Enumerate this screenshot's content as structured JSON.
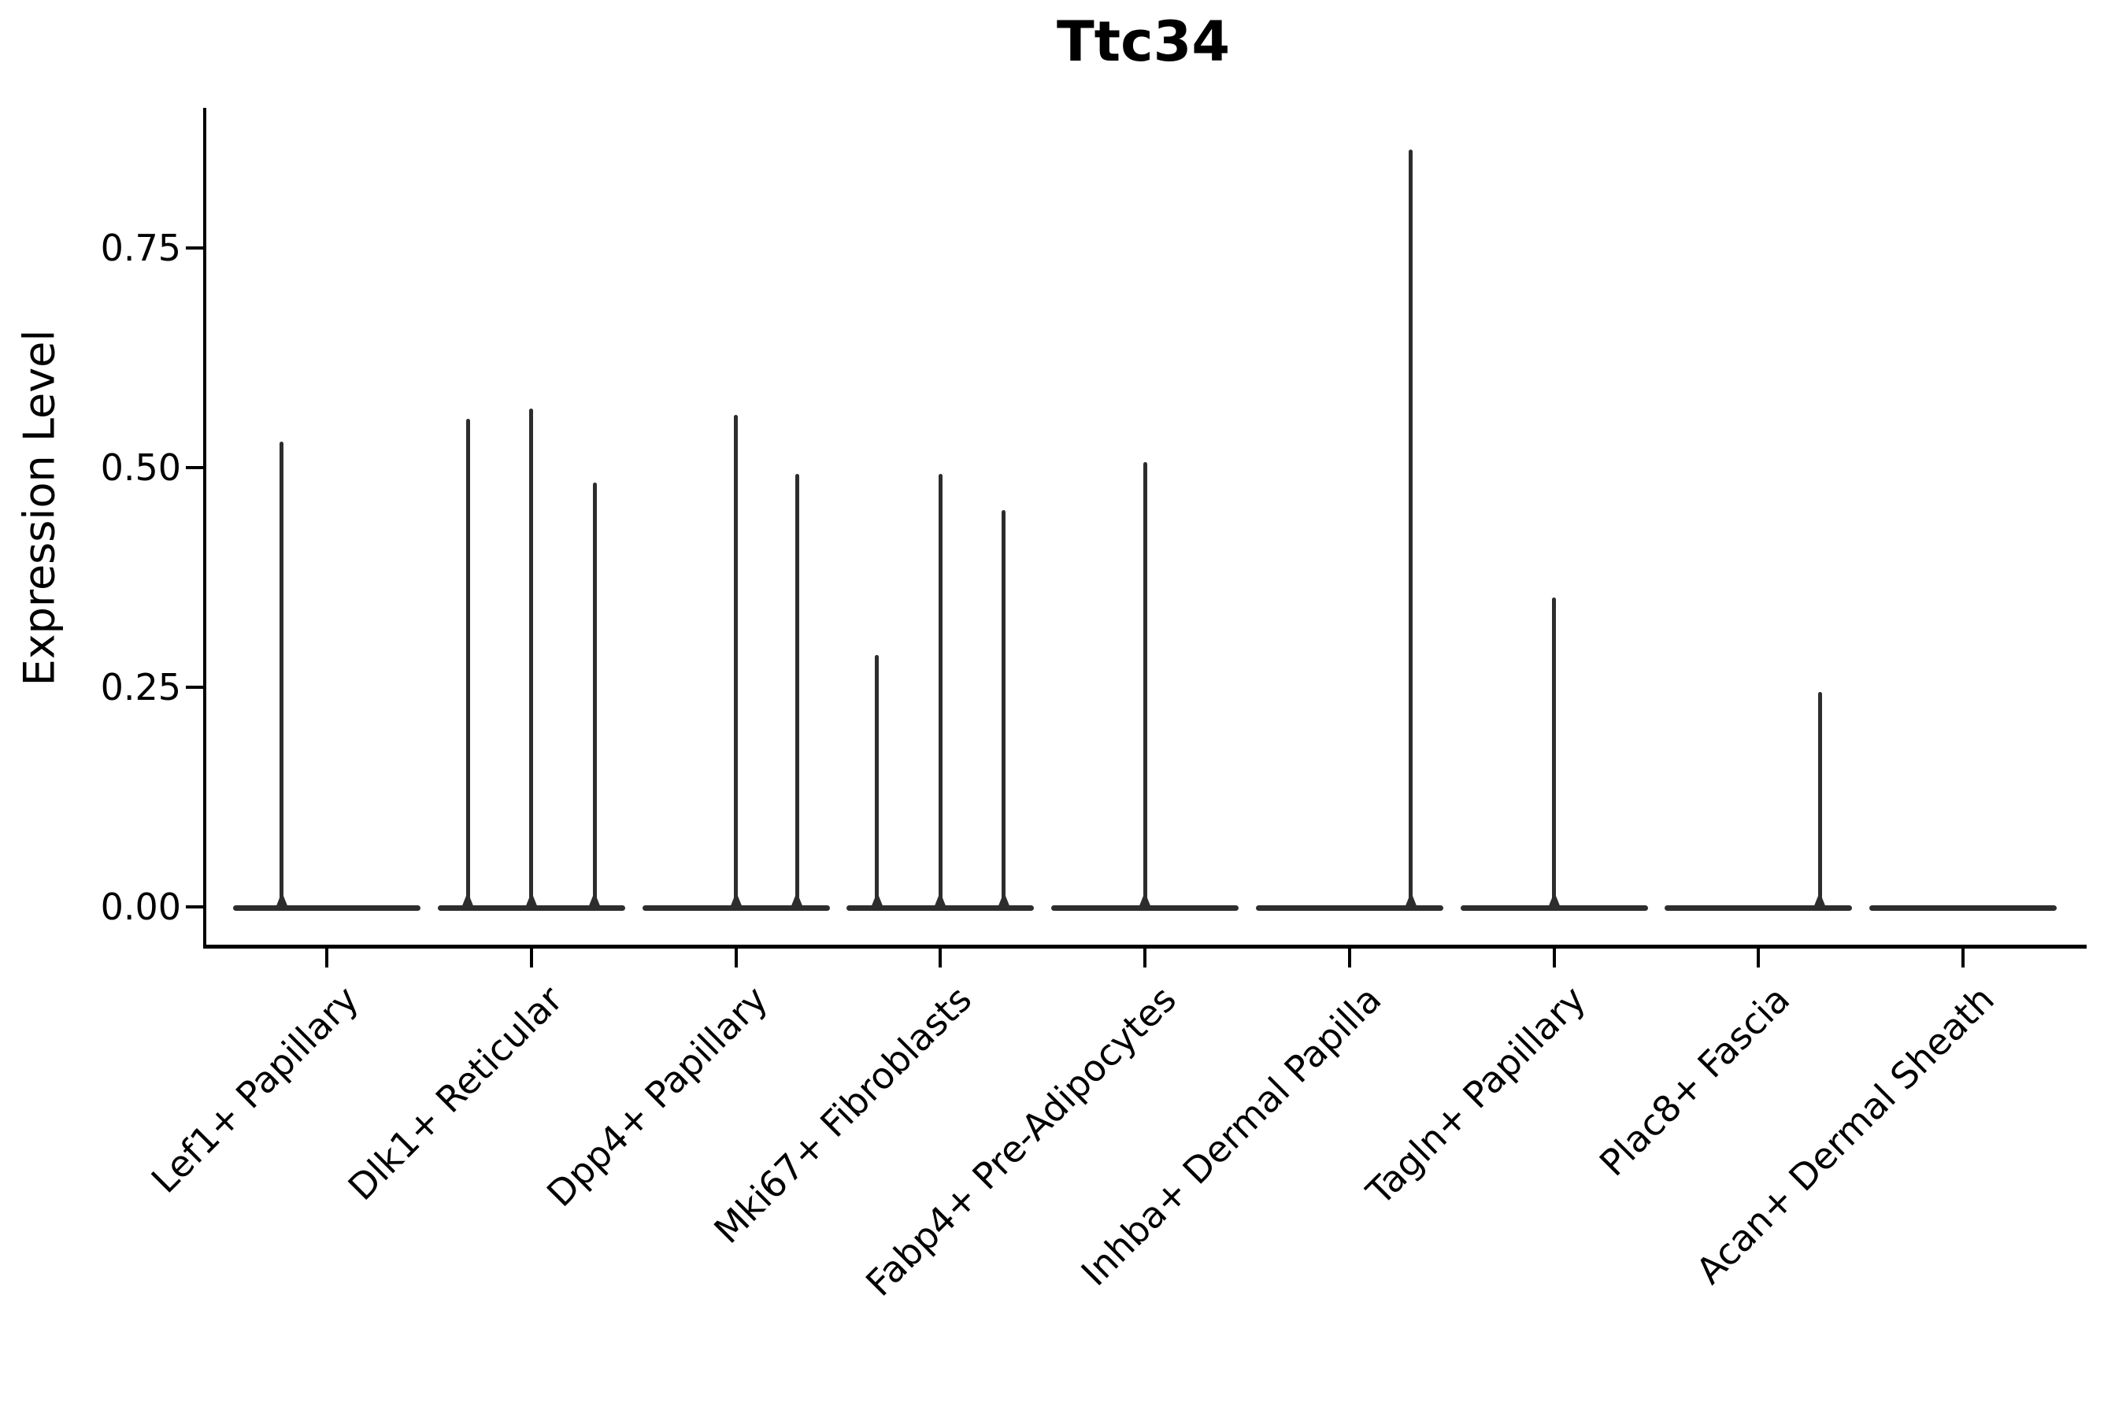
{
  "chart_data": {
    "type": "violin",
    "title": "Ttc34",
    "xlabel": "",
    "ylabel": "Expression Level",
    "ylim": [
      -0.045,
      0.91
    ],
    "grid": false,
    "legend": "none",
    "y_ticks": [
      {
        "value": 0.0,
        "label": "0.00"
      },
      {
        "value": 0.25,
        "label": "0.25"
      },
      {
        "value": 0.5,
        "label": "0.50"
      },
      {
        "value": 0.75,
        "label": "0.75"
      }
    ],
    "categories": [
      "Lef1+ Papillary",
      "Dlk1+ Reticular",
      "Dpp4+ Papillary",
      "Mki67+ Fibroblasts",
      "Fabp4+ Pre-Adipocytes",
      "Inhba+ Dermal Papilla",
      "Tagln+ Papillary",
      "Plac8+ Fascia",
      "Acan+ Dermal Sheath"
    ],
    "violins": [
      {
        "category": "Lef1+ Papillary",
        "baseline_value": 0,
        "spikes": [
          {
            "x_offset_frac": -0.22,
            "max_value": 0.53
          }
        ]
      },
      {
        "category": "Dlk1+ Reticular",
        "baseline_value": 0,
        "spikes": [
          {
            "x_offset_frac": -0.31,
            "max_value": 0.556
          },
          {
            "x_offset_frac": 0.0,
            "max_value": 0.567
          },
          {
            "x_offset_frac": 0.31,
            "max_value": 0.483
          }
        ]
      },
      {
        "category": "Dpp4+ Papillary",
        "baseline_value": 0,
        "spikes": [
          {
            "x_offset_frac": 0.0,
            "max_value": 0.56
          },
          {
            "x_offset_frac": 0.3,
            "max_value": 0.493
          }
        ]
      },
      {
        "category": "Mki67+ Fibroblasts",
        "baseline_value": 0,
        "spikes": [
          {
            "x_offset_frac": -0.31,
            "max_value": 0.287
          },
          {
            "x_offset_frac": 0.0,
            "max_value": 0.493
          },
          {
            "x_offset_frac": 0.31,
            "max_value": 0.452
          }
        ]
      },
      {
        "category": "Fabp4+ Pre-Adipocytes",
        "baseline_value": 0,
        "spikes": [
          {
            "x_offset_frac": 0.0,
            "max_value": 0.506
          }
        ]
      },
      {
        "category": "Inhba+ Dermal Papilla",
        "baseline_value": 0,
        "spikes": [
          {
            "x_offset_frac": 0.3,
            "max_value": 0.862
          }
        ]
      },
      {
        "category": "Tagln+ Papillary",
        "baseline_value": 0,
        "spikes": [
          {
            "x_offset_frac": 0.0,
            "max_value": 0.352
          }
        ]
      },
      {
        "category": "Plac8+ Fascia",
        "baseline_value": 0,
        "spikes": [
          {
            "x_offset_frac": 0.3,
            "max_value": 0.245
          }
        ]
      },
      {
        "category": "Acan+ Dermal Sheath",
        "baseline_value": 0,
        "spikes": []
      }
    ],
    "violin_width_frac": 0.915,
    "colors": {
      "violin": "#2d2d2d",
      "axis": "#000000",
      "text": "#000000",
      "background": "#ffffff"
    }
  }
}
